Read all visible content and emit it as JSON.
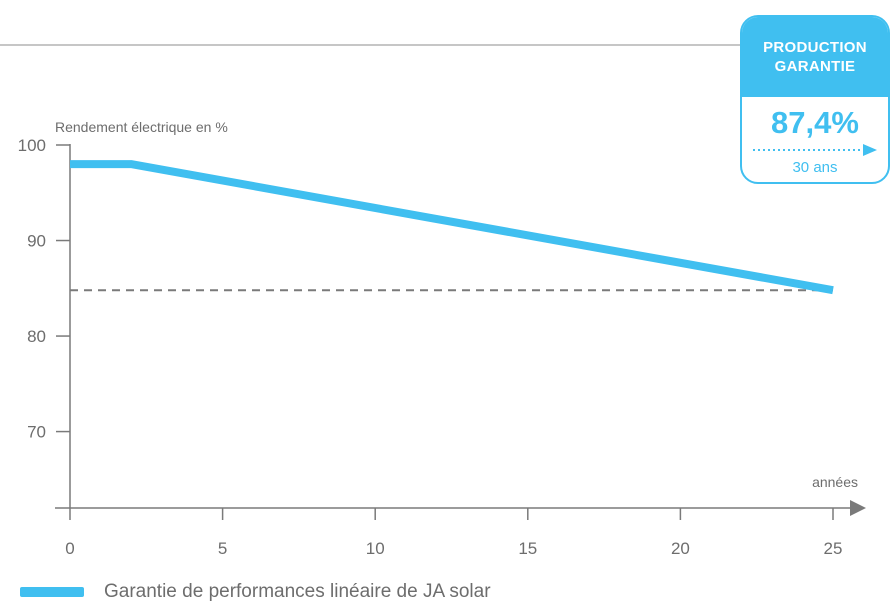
{
  "chart_data": {
    "type": "line",
    "ylabel": "Rendement électrique en %",
    "xlabel": "années",
    "x_ticks": [
      0,
      5,
      10,
      15,
      20,
      25
    ],
    "y_ticks": [
      70,
      80,
      90,
      100
    ],
    "xlim": [
      0,
      25
    ],
    "ylim": [
      62,
      100
    ],
    "series": [
      {
        "name": "Garantie de performances linéaire de JA solar",
        "color": "#40bff0",
        "x": [
          0,
          2,
          25
        ],
        "y": [
          98,
          98,
          84.8
        ]
      }
    ],
    "reference_line": {
      "y": 84.8,
      "x": [
        0,
        25
      ],
      "style": "dashed",
      "color": "#7a7a7a"
    },
    "grid": false,
    "legend_position": "bottom-left"
  },
  "badge": {
    "title_line1": "PRODUCTION",
    "title_line2": "GARANTIE",
    "value": "87,4%",
    "duration": "30 ans",
    "color": "#40bff0"
  }
}
